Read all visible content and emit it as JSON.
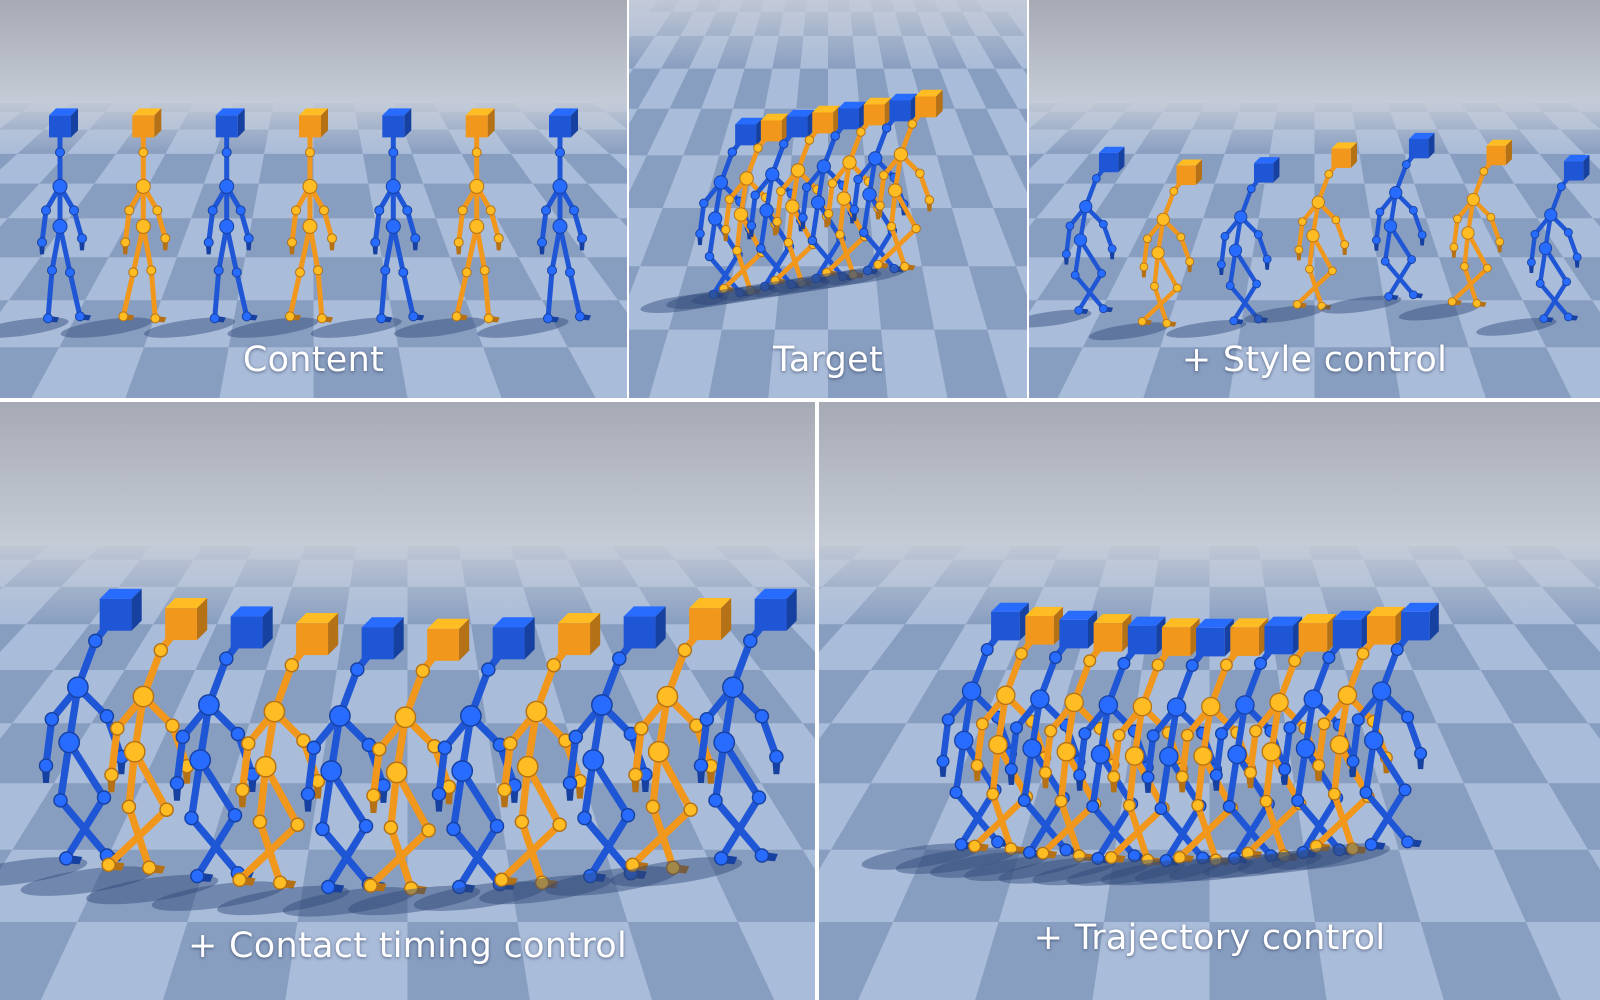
{
  "colors": {
    "sky_top": "#a6aab4",
    "sky_bottom": "#c6ccd7",
    "floor_light": "#a9bcd9",
    "floor_dark": "#6d85ab",
    "blue_character": "#1f56d6",
    "orange_character": "#f0971c",
    "shadow": "#2f4778",
    "caption_text": "#ffffff"
  },
  "panels": [
    {
      "id": "content",
      "caption": "Content",
      "pose": "upright",
      "figures": [
        "blue",
        "orange",
        "blue",
        "orange",
        "blue",
        "orange",
        "blue"
      ]
    },
    {
      "id": "target",
      "caption": "Target",
      "pose": "crouched",
      "figures": [
        "blue",
        "orange",
        "blue",
        "orange",
        "blue",
        "orange",
        "blue",
        "orange"
      ]
    },
    {
      "id": "style",
      "caption": "+ Style control",
      "pose": "crouched",
      "figures": [
        "blue",
        "orange",
        "blue",
        "orange",
        "blue",
        "orange",
        "blue"
      ]
    },
    {
      "id": "contact",
      "caption": "+ Contact timing control",
      "pose": "crouched",
      "figures": [
        "blue",
        "orange",
        "blue",
        "orange",
        "blue",
        "orange",
        "blue",
        "orange",
        "blue",
        "orange",
        "blue"
      ]
    },
    {
      "id": "trajectory",
      "caption": "+ Trajectory control",
      "pose": "crouched",
      "figures": [
        "blue",
        "orange",
        "blue",
        "orange",
        "blue",
        "orange",
        "blue",
        "orange",
        "blue",
        "orange",
        "blue",
        "orange",
        "blue"
      ]
    }
  ]
}
